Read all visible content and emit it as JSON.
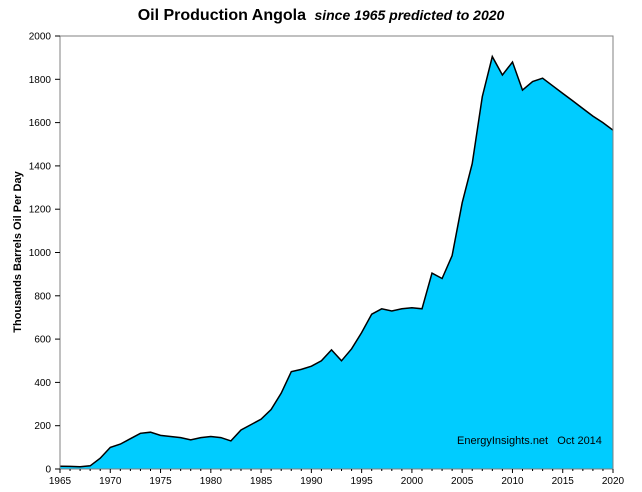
{
  "chart_data": {
    "type": "area",
    "title": "Oil Production Angola",
    "subtitle": "since 1965 predicted to 2020",
    "xlabel": "",
    "ylabel": "Thousands Barrels Oil Per Day",
    "xlim": [
      1965,
      2020
    ],
    "ylim": [
      0,
      2000
    ],
    "x_ticks": [
      1965,
      1970,
      1975,
      1980,
      1985,
      1990,
      1995,
      2000,
      2005,
      2010,
      2015,
      2020
    ],
    "y_ticks": [
      0,
      200,
      400,
      600,
      800,
      1000,
      1200,
      1400,
      1600,
      1800,
      2000
    ],
    "grid": false,
    "fill_color": "#00CCFF",
    "line_color": "#000000",
    "annotation": "EnergyInsights.net   Oct 2014",
    "series": [
      {
        "x": [
          1965,
          1966,
          1967,
          1968,
          1969,
          1970,
          1971,
          1972,
          1973,
          1974,
          1975,
          1976,
          1977,
          1978,
          1979,
          1980,
          1981,
          1982,
          1983,
          1984,
          1985,
          1986,
          1987,
          1988,
          1989,
          1990,
          1991,
          1992,
          1993,
          1994,
          1995,
          1996,
          1997,
          1998,
          1999,
          2000,
          2001,
          2002,
          2003,
          2004,
          2005,
          2006,
          2007,
          2008,
          2009,
          2010,
          2011,
          2012,
          2013,
          2014,
          2015,
          2016,
          2017,
          2018,
          2019,
          2020
        ],
        "values": [
          13,
          12,
          10,
          15,
          50,
          100,
          115,
          140,
          165,
          170,
          155,
          150,
          145,
          135,
          145,
          150,
          145,
          130,
          180,
          205,
          230,
          275,
          350,
          450,
          460,
          475,
          500,
          550,
          500,
          555,
          630,
          715,
          740,
          730,
          740,
          745,
          740,
          905,
          880,
          985,
          1230,
          1410,
          1720,
          1905,
          1820,
          1880,
          1750,
          1790,
          1805,
          1770,
          1735,
          1700,
          1665,
          1630,
          1600,
          1565
        ]
      }
    ]
  }
}
